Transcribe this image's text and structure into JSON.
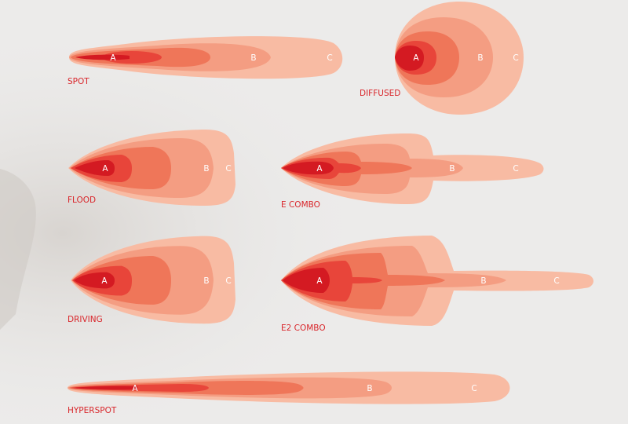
{
  "colors": {
    "zone_c": "#f8bba3",
    "zone_b": "#f49d82",
    "zone_mid": "#ef7659",
    "zone_inner": "#e8453a",
    "zone_a_core": "#d41a22",
    "label": "#d9262b",
    "background": "#ecebea"
  },
  "beams": {
    "spot": {
      "name": "SPOT",
      "zones": [
        "A",
        "B",
        "C"
      ]
    },
    "diffused": {
      "name": "DIFFUSED",
      "zones": [
        "A",
        "B",
        "C"
      ]
    },
    "flood": {
      "name": "FLOOD",
      "zones": [
        "A",
        "B",
        "C"
      ]
    },
    "e_combo": {
      "name": "E COMBO",
      "zones": [
        "A",
        "B",
        "C"
      ]
    },
    "driving": {
      "name": "DRIVING",
      "zones": [
        "A",
        "B",
        "C"
      ]
    },
    "e2_combo": {
      "name": "E2 COMBO",
      "zones": [
        "A",
        "B",
        "C"
      ]
    },
    "hyperspot": {
      "name": "HYPERSPOT",
      "zones": [
        "A",
        "B",
        "C"
      ]
    }
  }
}
